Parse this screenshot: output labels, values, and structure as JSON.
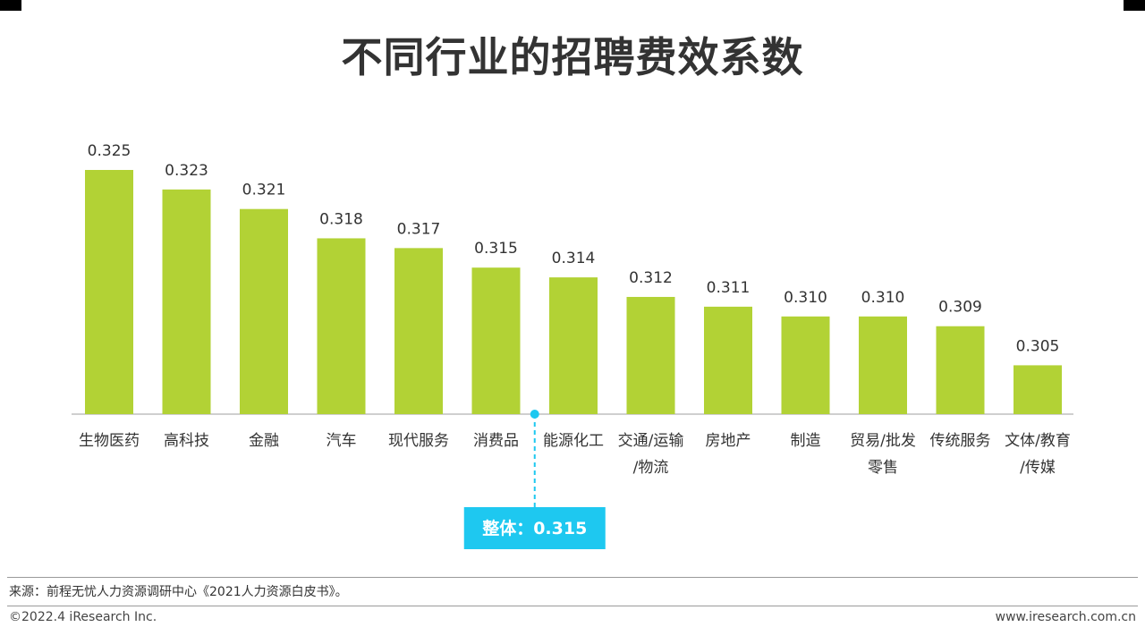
{
  "page": {
    "title": "不同行业的招聘费效系数",
    "source": "来源：前程无忧人力资源调研中心《2021人力资源白皮书》。",
    "copyright": "©2022.4 iResearch Inc.",
    "website": "www.iresearch.com.cn"
  },
  "colors": {
    "bar": "#b2d235",
    "callout": "#1ec8f0",
    "axis": "#bfbfbf",
    "text": "#333333"
  },
  "chart_data": {
    "type": "bar",
    "title": "不同行业的招聘费效系数",
    "xlabel": "",
    "ylabel": "",
    "categories": [
      [
        "生物医药"
      ],
      [
        "高科技"
      ],
      [
        "金融"
      ],
      [
        "汽车"
      ],
      [
        "现代服务"
      ],
      [
        "消费品"
      ],
      [
        "能源化工"
      ],
      [
        "交通/运输",
        "/物流"
      ],
      [
        "房地产"
      ],
      [
        "制造"
      ],
      [
        "贸易/批发",
        "零售"
      ],
      [
        "传统服务"
      ],
      [
        "文体/教育",
        "/传媒"
      ]
    ],
    "values": [
      0.325,
      0.323,
      0.321,
      0.318,
      0.317,
      0.315,
      0.314,
      0.312,
      0.311,
      0.31,
      0.31,
      0.309,
      0.305
    ],
    "value_labels": [
      "0.325",
      "0.323",
      "0.321",
      "0.318",
      "0.317",
      "0.315",
      "0.314",
      "0.312",
      "0.311",
      "0.310",
      "0.310",
      "0.309",
      "0.305"
    ],
    "ylim": [
      0.3,
      0.325
    ],
    "grid": false,
    "reference": {
      "label": "整体：0.315",
      "value": 0.315,
      "position_after_category": "消费品"
    }
  }
}
